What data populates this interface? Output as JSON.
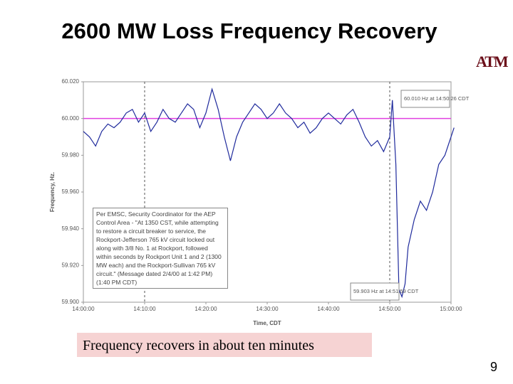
{
  "slide": {
    "title": "2600 MW Loss Frequency Recovery",
    "logo": "ATM",
    "caption": "Frequency recovers in about ten minutes",
    "page_number": "9"
  },
  "chart_data": {
    "type": "line",
    "x_label": "Time, CDT",
    "y_label": "Frequency, Hz.",
    "x": [
      "14:00:00",
      "14:01:00",
      "14:02:00",
      "14:03:00",
      "14:04:00",
      "14:05:00",
      "14:06:00",
      "14:07:00",
      "14:08:00",
      "14:09:00",
      "14:10:00",
      "14:11:00",
      "14:12:00",
      "14:13:00",
      "14:14:00",
      "14:15:00",
      "14:16:00",
      "14:17:00",
      "14:18:00",
      "14:19:00",
      "14:20:00",
      "14:21:00",
      "14:22:00",
      "14:23:00",
      "14:24:00",
      "14:25:00",
      "14:26:00",
      "14:27:00",
      "14:28:00",
      "14:29:00",
      "14:30:00",
      "14:31:00",
      "14:32:00",
      "14:33:00",
      "14:34:00",
      "14:35:00",
      "14:36:00",
      "14:37:00",
      "14:38:00",
      "14:39:00",
      "14:40:00",
      "14:41:00",
      "14:42:00",
      "14:43:00",
      "14:44:00",
      "14:45:00",
      "14:46:00",
      "14:47:00",
      "14:48:00",
      "14:49:00",
      "14:50:00",
      "14:50:26",
      "14:51:00",
      "14:51:30",
      "14:51:59",
      "14:52:30",
      "14:53:00",
      "14:54:00",
      "14:55:00",
      "14:56:00",
      "14:57:00",
      "14:58:00",
      "14:59:00",
      "15:00:00",
      "15:00:30"
    ],
    "series": [
      {
        "name": "Frequency",
        "color": "#1f2a9c",
        "values": [
          59.993,
          59.99,
          59.985,
          59.993,
          59.997,
          59.995,
          59.998,
          60.003,
          60.005,
          59.998,
          60.003,
          59.993,
          59.998,
          60.005,
          60,
          59.998,
          60.003,
          60.008,
          60.005,
          59.995,
          60.003,
          60.016,
          60.005,
          59.99,
          59.977,
          59.99,
          59.998,
          60.003,
          60.008,
          60.005,
          60,
          60.003,
          60.008,
          60.003,
          60,
          59.995,
          59.998,
          59.992,
          59.995,
          60,
          60.003,
          60,
          59.997,
          60.002,
          60.005,
          59.998,
          59.99,
          59.985,
          59.988,
          59.982,
          59.99,
          60.01,
          59.975,
          59.907,
          59.903,
          59.91,
          59.93,
          59.945,
          59.955,
          59.95,
          59.96,
          59.975,
          59.98,
          59.99,
          59.995
        ]
      }
    ],
    "xlim": [
      "14:00:00",
      "15:00:00"
    ],
    "xticks": [
      "14:00:00",
      "14:10:00",
      "14:20:00",
      "14:30:00",
      "14:40:00",
      "14:50:00",
      "15:00:00"
    ],
    "ylim": [
      59.9,
      60.02
    ],
    "yticks": [
      {
        "value": 60.02,
        "label": "60.020"
      },
      {
        "value": 60,
        "label": "60.000"
      },
      {
        "value": 59.98,
        "label": "59.980"
      },
      {
        "value": 59.96,
        "label": "59.960"
      },
      {
        "value": 59.94,
        "label": "59.940"
      },
      {
        "value": 59.92,
        "label": "59.920"
      },
      {
        "value": 59.9,
        "label": "59.900"
      }
    ],
    "reference_line": {
      "value": 60,
      "color": "#e040e0"
    },
    "event_lines": [
      "14:10:00",
      "14:50:00"
    ],
    "annotations": [
      "60.010 Hz at 14:50:26 CDT",
      "59.903 Hz at 14:51:59 CDT"
    ],
    "note": "Per EMSC, Security Coordinator for the AEP Control Area - \"At 1350 CST, while attempting to restore a circuit breaker to service, the Rockport-Jefferson 765 kV circuit locked out along with 3/8 No. 1 at Rockport, followed within seconds by Rockport Unit 1 and 2 (1300 MW each) and the Rockport-Sullivan 765 kV circuit.\" (Message dated 2/4/00 at 1:42 PM) (1:40 PM CDT)"
  }
}
